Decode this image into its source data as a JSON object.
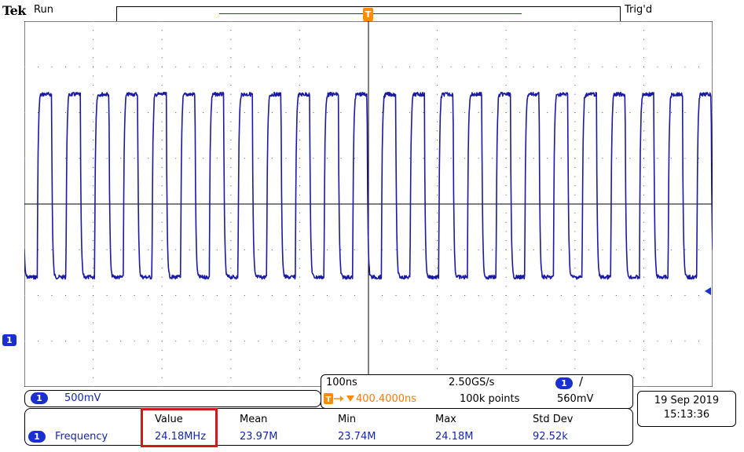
{
  "header": {
    "brand": "Tek",
    "run_state": "Run",
    "trigger_state": "Trig'd",
    "trigger_marker": "T"
  },
  "channel": {
    "number": "1",
    "scale": "500mV"
  },
  "horizontal": {
    "time_per_div": "100ns",
    "sample_rate": "2.50GS/s",
    "trigger_channel": "1",
    "slope_symbol": "/",
    "trigger_position": "400.4000ns",
    "record_length": "100k points",
    "trigger_level": "560mV"
  },
  "measurement": {
    "channel": "1",
    "name": "Frequency",
    "headers": [
      "Value",
      "Mean",
      "Min",
      "Max",
      "Std Dev"
    ],
    "values": [
      "24.18MHz",
      "23.97M",
      "23.74M",
      "24.18M",
      "92.52k"
    ]
  },
  "datetime": {
    "date": "19 Sep 2019",
    "time": "15:13:36"
  },
  "colors": {
    "trace": "#1a1aa6",
    "accent_orange": "#ff8c00",
    "badge_blue": "#1a2fd0",
    "highlight_red": "#d01a1a"
  },
  "chart_data": {
    "type": "line",
    "title": "",
    "xlabel": "",
    "ylabel": "",
    "series": [
      {
        "values": []
      }
    ],
    "x_divisions": 10,
    "y_divisions": 8,
    "grid": true,
    "cycles_on_screen": 24,
    "waveform": "square",
    "high_level_div": 2.4,
    "low_level_div": -1.6
  }
}
